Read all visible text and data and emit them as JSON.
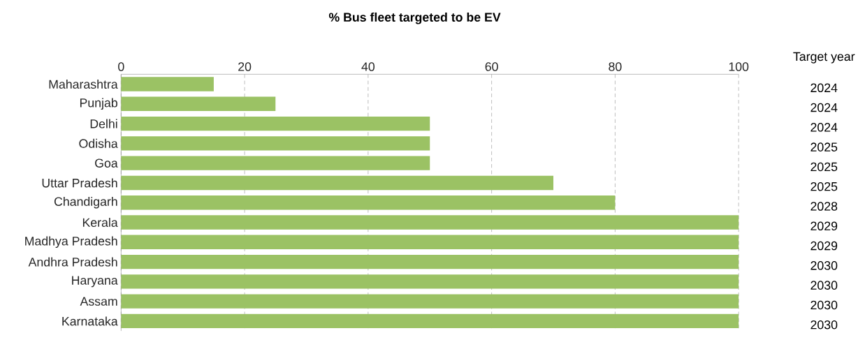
{
  "chart_data": {
    "type": "bar",
    "orientation": "horizontal",
    "title": "% Bus fleet targeted to be EV",
    "categories": [
      "Maharashtra",
      "Punjab",
      "Delhi",
      "Odisha",
      "Goa",
      "Uttar Pradesh",
      "Chandigarh",
      "Kerala",
      "Madhya Pradesh",
      "Andhra Pradesh",
      "Haryana",
      "Assam",
      "Karnataka"
    ],
    "values": [
      15,
      25,
      50,
      50,
      50,
      70,
      80,
      100,
      100,
      100,
      100,
      100,
      100
    ],
    "color": "#9bc264",
    "xlim": [
      0,
      100
    ],
    "xticks": [
      0,
      20,
      40,
      60,
      80,
      100
    ],
    "grid": "x",
    "annotations": [
      "Target year",
      "2024",
      "2024",
      "2024",
      "2025",
      "2025",
      "2025",
      "2028",
      "2029",
      "2029",
      "2030",
      "2030",
      "2030",
      "2030"
    ]
  }
}
